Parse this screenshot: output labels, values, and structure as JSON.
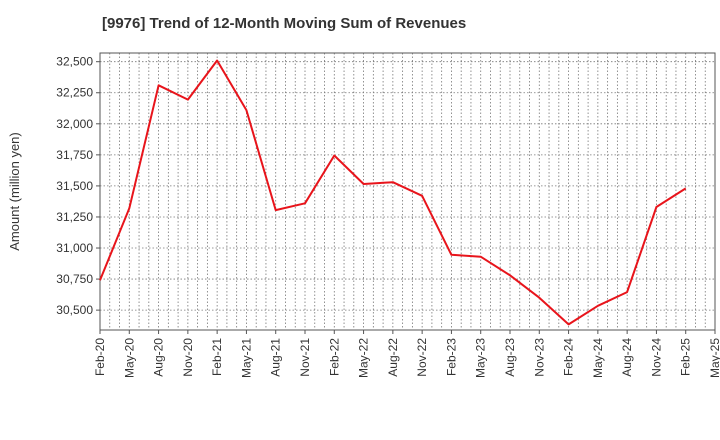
{
  "chart_data": {
    "type": "line",
    "title": "[9976]  Trend of 12-Month Moving Sum of Revenues",
    "ylabel": "Amount (million yen)",
    "xlabel": "",
    "ylim": [
      30340,
      32570
    ],
    "y_ticks": [
      "30,500",
      "30,750",
      "31,000",
      "31,250",
      "31,500",
      "31,750",
      "32,000",
      "32,250",
      "32,500"
    ],
    "y_tick_values": [
      30500,
      30750,
      31000,
      31250,
      31500,
      31750,
      32000,
      32250,
      32500
    ],
    "categories": [
      "Feb-20",
      "May-20",
      "Aug-20",
      "Nov-20",
      "Feb-21",
      "May-21",
      "Aug-21",
      "Nov-21",
      "Feb-22",
      "May-22",
      "Aug-22",
      "Nov-22",
      "Feb-23",
      "May-23",
      "Aug-23",
      "Nov-23",
      "Feb-24",
      "May-24",
      "Aug-24",
      "Nov-24",
      "Feb-25",
      "May-25"
    ],
    "series": [
      {
        "color": "#e8141b",
        "values": [
          30740,
          31320,
          32310,
          32195,
          32510,
          32110,
          31305,
          31360,
          31745,
          31515,
          31530,
          31420,
          30945,
          30930,
          30780,
          30600,
          30385,
          30535,
          30645,
          31330,
          31480,
          null
        ]
      }
    ],
    "grid": true,
    "legend": "none"
  }
}
